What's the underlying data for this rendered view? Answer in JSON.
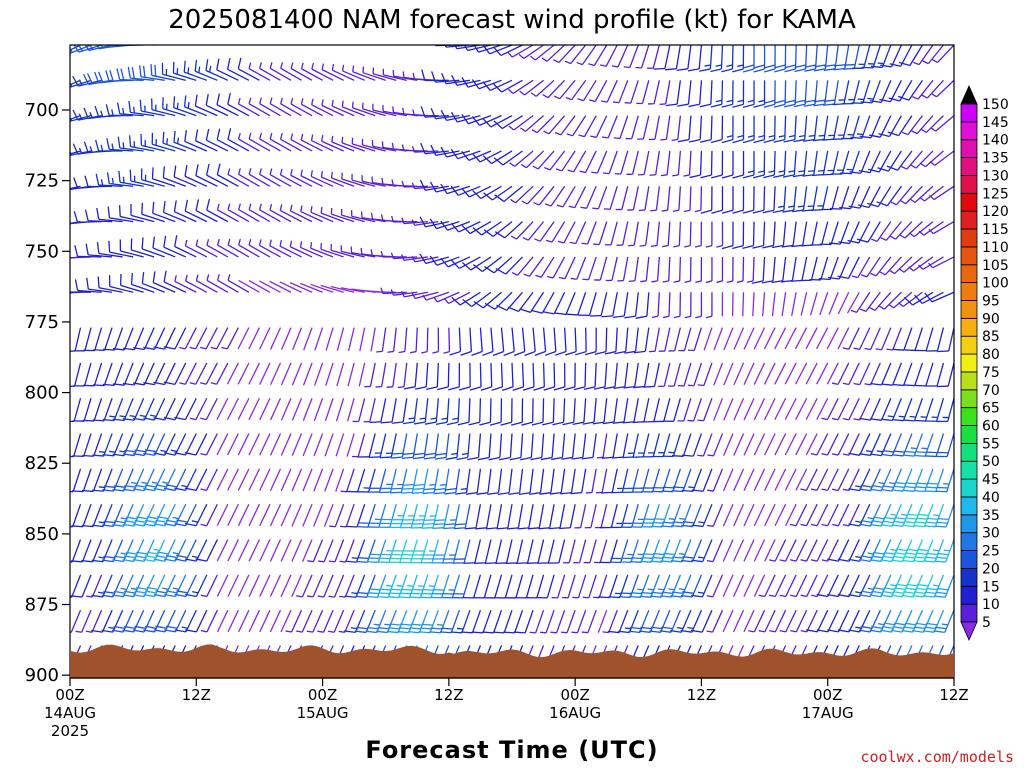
{
  "title": "2025081400 NAM forecast wind profile (kt) for KAMA",
  "xlabel": "Forecast Time (UTC)",
  "credit": "coolwx.com/models",
  "chart_data": {
    "type": "wind-barb time-height section",
    "yaxis": {
      "label": "",
      "reversed": true,
      "range": [
        677,
        901
      ],
      "ticks": [
        700,
        725,
        750,
        775,
        800,
        825,
        850,
        875,
        900
      ]
    },
    "xaxis": {
      "range_hours": [
        0,
        84
      ],
      "ticks": [
        {
          "hour": 0,
          "lines": [
            "00Z",
            "14AUG",
            "2025"
          ]
        },
        {
          "hour": 12,
          "lines": [
            "12Z"
          ]
        },
        {
          "hour": 24,
          "lines": [
            "00Z",
            "15AUG"
          ]
        },
        {
          "hour": 36,
          "lines": [
            "12Z"
          ]
        },
        {
          "hour": 48,
          "lines": [
            "00Z",
            "16AUG"
          ]
        },
        {
          "hour": 60,
          "lines": [
            "12Z"
          ]
        },
        {
          "hour": 72,
          "lines": [
            "00Z",
            "17AUG"
          ]
        },
        {
          "hour": 84,
          "lines": [
            "12Z"
          ]
        }
      ]
    },
    "colorbar": {
      "label": "",
      "levels": [
        5,
        10,
        15,
        20,
        25,
        30,
        35,
        40,
        45,
        50,
        55,
        60,
        65,
        70,
        75,
        80,
        85,
        90,
        95,
        100,
        105,
        110,
        115,
        120,
        125,
        130,
        135,
        140,
        145,
        150
      ],
      "colors": [
        "#8a2be2",
        "#5a1fd8",
        "#2020d0",
        "#1433c8",
        "#1c55dd",
        "#1f78e6",
        "#1f98ea",
        "#20b8e8",
        "#1cd4cf",
        "#14e0a8",
        "#12e07a",
        "#18e040",
        "#3ce01e",
        "#7ae01e",
        "#b8e01a",
        "#f0f012",
        "#f4d010",
        "#f4b010",
        "#f29010",
        "#ee7c10",
        "#e86810",
        "#e45510",
        "#e03c10",
        "#e02020",
        "#e00a0a",
        "#e0104a",
        "#e01080",
        "#e010b0",
        "#e010d8",
        "#cc00ff"
      ],
      "top_arrow_color": "#000000",
      "bottom_arrow_color": "#8a2be2"
    },
    "terrain": {
      "color": "#a0522d",
      "surface_pressure": 891
    },
    "barb_grid": {
      "time_step_hours": 1,
      "pressure_step_hpa": 12.5,
      "pressure_top": 677,
      "pressure_bottom": 890
    }
  }
}
